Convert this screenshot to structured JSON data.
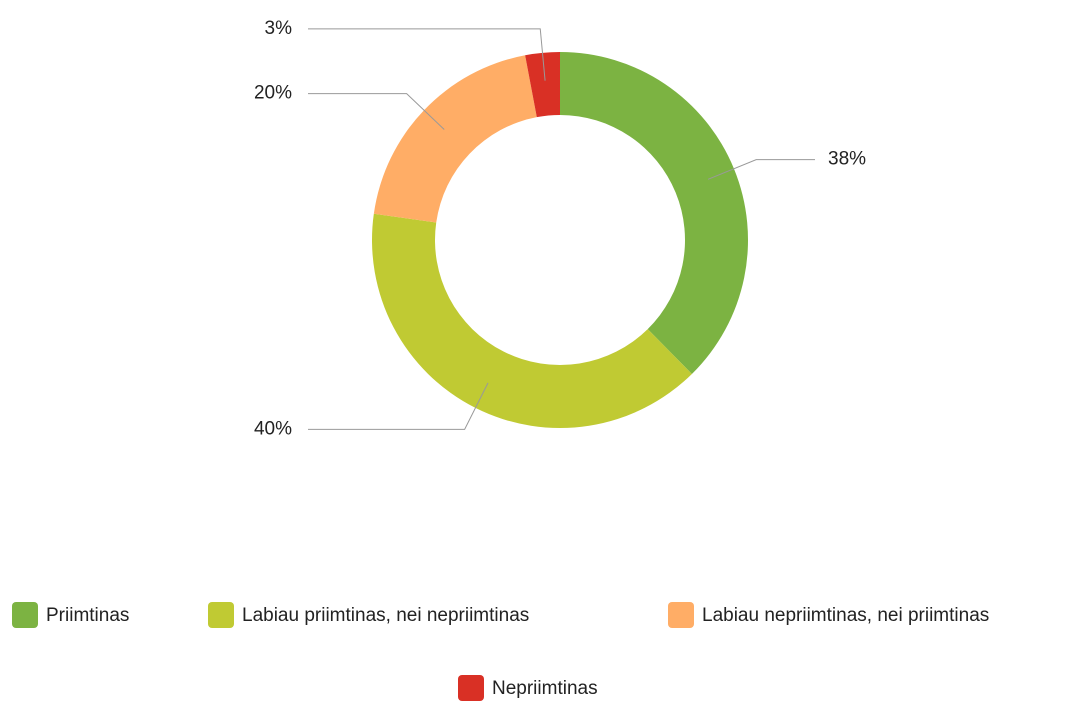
{
  "chart_data": {
    "type": "donut",
    "categories": [
      "Priimtinas",
      "Labiau priimtinas, nei nepriimtinas",
      "Labiau nepriimtinas, nei priimtinas",
      "Nepriimtinas"
    ],
    "values": [
      38,
      40,
      20,
      3
    ],
    "value_labels": [
      "38%",
      "40%",
      "20%",
      "3%"
    ],
    "colors": [
      "#7cb342",
      "#c0ca33",
      "#ffad66",
      "#d93025"
    ],
    "legend": "bottom"
  }
}
